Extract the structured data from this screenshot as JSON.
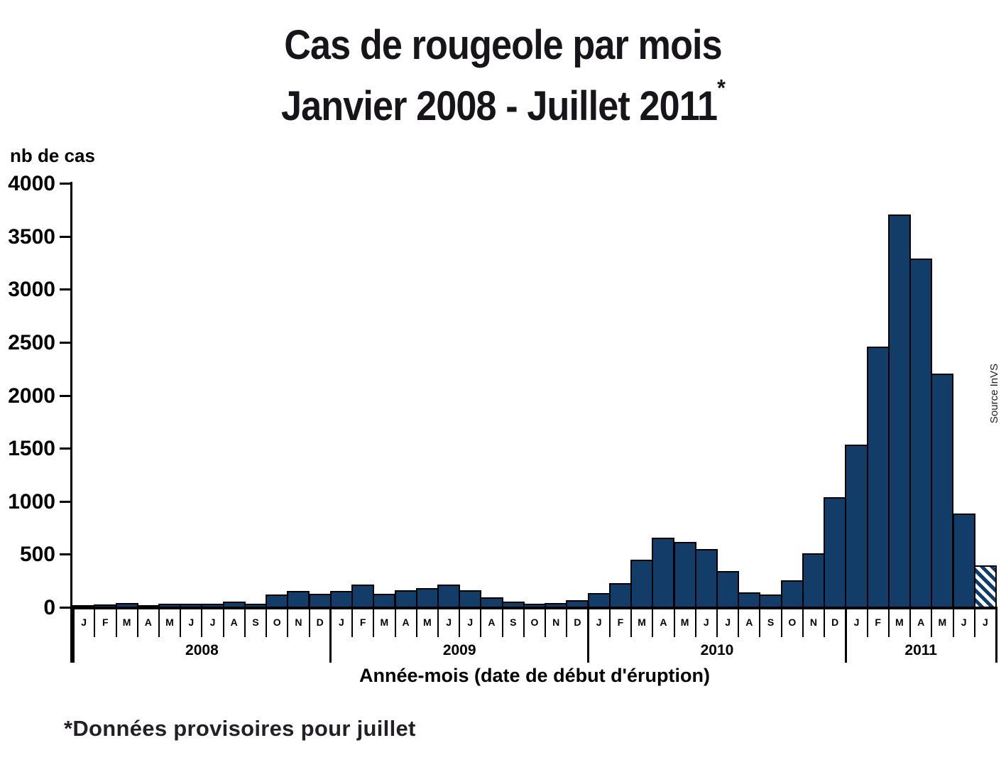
{
  "title": {
    "line1": "Cas de rougeole par mois",
    "line2": "Janvier 2008 - Juillet 2011",
    "superscript": "*"
  },
  "footnote": "*Données provisoires pour juillet",
  "source_label": "Source InVS",
  "chart_data": {
    "type": "bar",
    "title": "Cas de rougeole par mois Janvier 2008 - Juillet 2011*",
    "ylabel": "nb de cas",
    "xlabel": "Année-mois (date de début d'éruption)",
    "ylim": [
      0,
      4000
    ],
    "ytick_step": 500,
    "ytick_labels": [
      "0",
      "500",
      "1000",
      "1500",
      "2000",
      "2500",
      "3000",
      "3500",
      "4000"
    ],
    "grid": false,
    "legend_position": "none",
    "bar_color": "#133d69",
    "bar_outline_color": "#000000",
    "provisional_bar": {
      "year": "2011",
      "month_index": 6,
      "style": "diagonal-hatch"
    },
    "years": [
      {
        "year": "2008",
        "months": [
          "J",
          "F",
          "M",
          "A",
          "M",
          "J",
          "J",
          "A",
          "S",
          "O",
          "N",
          "D"
        ],
        "values": [
          12,
          20,
          35,
          14,
          30,
          30,
          28,
          46,
          30,
          115,
          145,
          122
        ]
      },
      {
        "year": "2009",
        "months": [
          "J",
          "F",
          "M",
          "A",
          "M",
          "J",
          "J",
          "A",
          "S",
          "O",
          "N",
          "D"
        ],
        "values": [
          150,
          210,
          120,
          155,
          175,
          205,
          155,
          90,
          45,
          30,
          35,
          60
        ]
      },
      {
        "year": "2010",
        "months": [
          "J",
          "F",
          "M",
          "A",
          "M",
          "J",
          "J",
          "A",
          "S",
          "O",
          "N",
          "D"
        ],
        "values": [
          130,
          220,
          445,
          650,
          610,
          540,
          335,
          135,
          115,
          250,
          500,
          1030
        ]
      },
      {
        "year": "2011",
        "months": [
          "J",
          "F",
          "M",
          "A",
          "M",
          "J",
          "J"
        ],
        "values": [
          1530,
          2450,
          3700,
          3280,
          2200,
          880,
          390
        ]
      }
    ]
  }
}
